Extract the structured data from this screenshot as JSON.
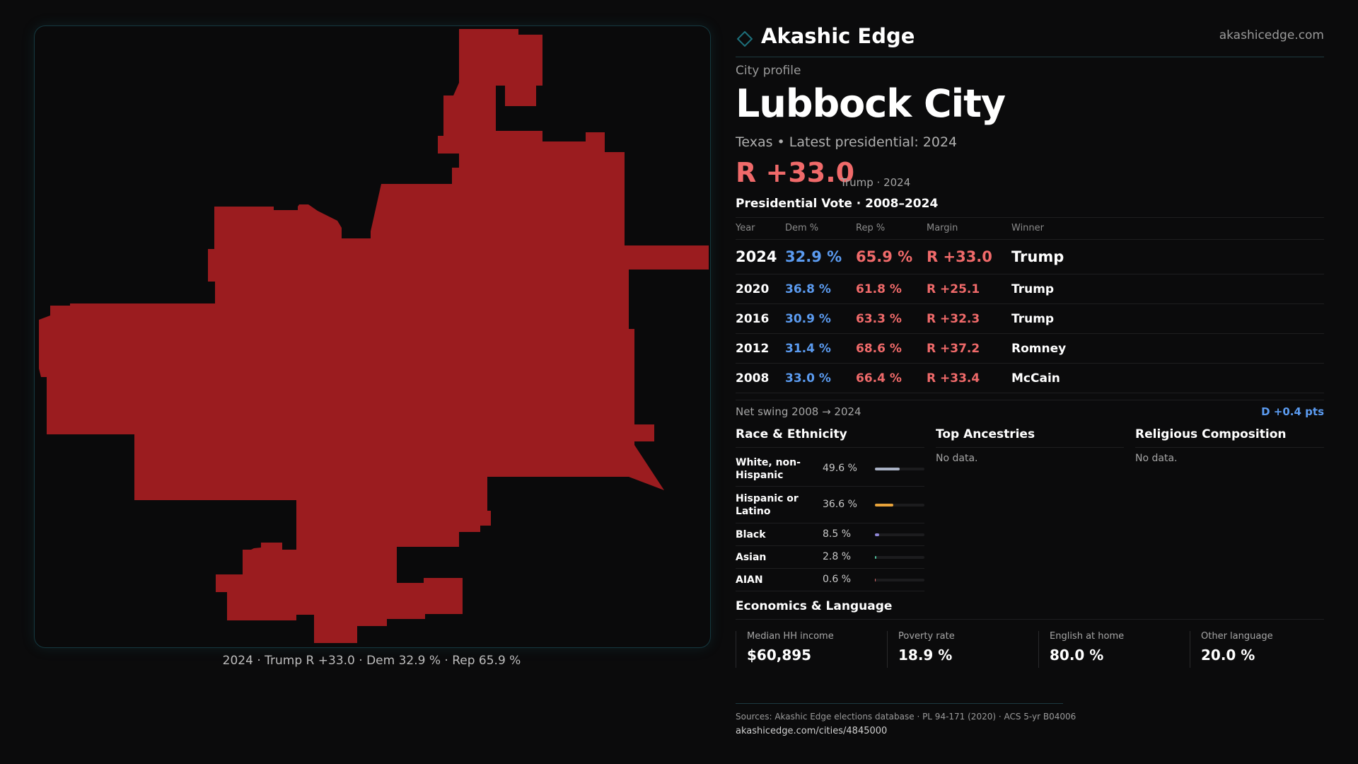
{
  "brand": {
    "name": "Akashic Edge",
    "url": "akashicedge.com",
    "accent": "#1d6f7a"
  },
  "profile": {
    "eyebrow": "City profile",
    "city": "Lubbock City",
    "subtitle": "Texas  • Latest presidential: 2024",
    "headline_margin": "R +33.0",
    "headline_note": "Trump · 2024"
  },
  "map": {
    "fill_color": "#9b1c1f",
    "caption": "2024 · Trump R +33.0 · Dem 32.9 % · Rep 65.9 %"
  },
  "vote_table": {
    "title": "Presidential Vote · 2008–2024",
    "headers": {
      "year": "Year",
      "dem": "Dem %",
      "rep": "Rep %",
      "margin": "Margin",
      "winner": "Winner"
    },
    "rows": [
      {
        "year": "2024",
        "dem": "32.9 %",
        "rep": "65.9 %",
        "margin": "R +33.0",
        "winner": "Trump"
      },
      {
        "year": "2020",
        "dem": "36.8 %",
        "rep": "61.8 %",
        "margin": "R +25.1",
        "winner": "Trump"
      },
      {
        "year": "2016",
        "dem": "30.9 %",
        "rep": "63.3 %",
        "margin": "R +32.3",
        "winner": "Trump"
      },
      {
        "year": "2012",
        "dem": "31.4 %",
        "rep": "68.6 %",
        "margin": "R +37.2",
        "winner": "Romney"
      },
      {
        "year": "2008",
        "dem": "33.0 %",
        "rep": "66.4 %",
        "margin": "R +33.4",
        "winner": "McCain"
      }
    ],
    "dem_color": "#5b9bf0",
    "rep_color": "#f06a6a"
  },
  "swing": {
    "label": "Net swing 2008 → 2024",
    "value": "D +0.4 pts"
  },
  "race": {
    "title": "Race & Ethnicity",
    "items": [
      {
        "label": "White, non-Hispanic",
        "pct": "49.6 %",
        "share": 0.496,
        "color": "#a9b1c4"
      },
      {
        "label": "Hispanic or Latino",
        "pct": "36.6 %",
        "share": 0.366,
        "color": "#e8a33a"
      },
      {
        "label": "Black",
        "pct": "8.5 %",
        "share": 0.085,
        "color": "#8f86d6"
      },
      {
        "label": "Asian",
        "pct": "2.8 %",
        "share": 0.028,
        "color": "#4fbf9b"
      },
      {
        "label": "AIAN",
        "pct": "0.6 %",
        "share": 0.006,
        "color": "#d66a6a"
      }
    ]
  },
  "ancestries": {
    "title": "Top Ancestries",
    "empty": "No data."
  },
  "religion": {
    "title": "Religious Composition",
    "empty": "No data."
  },
  "economics": {
    "title": "Economics & Language",
    "cells": [
      {
        "label": "Median HH income",
        "value": "$60,895"
      },
      {
        "label": "Poverty rate",
        "value": "18.9 %"
      },
      {
        "label": "English at home",
        "value": "80.0 %"
      },
      {
        "label": "Other language",
        "value": "20.0 %"
      }
    ]
  },
  "footer": {
    "sources": "Sources: Akashic Edge elections database · PL 94-171 (2020) · ACS 5-yr B04006",
    "url": "akashicedge.com/cities/4845000"
  }
}
